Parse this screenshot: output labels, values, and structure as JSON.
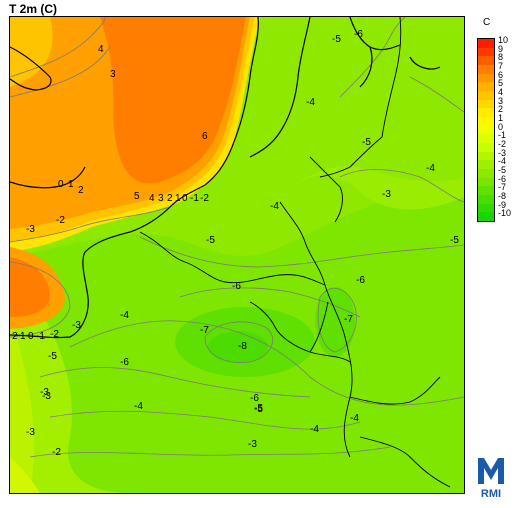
{
  "title": "T 2m (C)",
  "unit": "C",
  "legend": {
    "labels": [
      "10",
      "9",
      "8",
      "7",
      "6",
      "5",
      "4",
      "3",
      "2",
      "1",
      "0",
      "-1",
      "-2",
      "-3",
      "-4",
      "-5",
      "-6",
      "-7",
      "-8",
      "-9",
      "-10"
    ],
    "colors": [
      "#ff1e00",
      "#ff3a00",
      "#ff5c00",
      "#ff7e00",
      "#ff9800",
      "#ffb000",
      "#ffc400",
      "#ffd800",
      "#ffea00",
      "#fff600",
      "#f0ff00",
      "#dcff00",
      "#c8ff00",
      "#b4f500",
      "#a0ee00",
      "#8cea00",
      "#78e600",
      "#60e200",
      "#48de00",
      "#30da00",
      "#18d600"
    ]
  },
  "contour_labels": [
    "4",
    "3",
    "6",
    "5",
    "4",
    "3",
    "2",
    "1",
    "0",
    "-1",
    "-2",
    "0",
    "1",
    "2",
    "-2",
    "-3",
    "2",
    "1",
    "0",
    "-1",
    "-2",
    "-3",
    "-4",
    "-5",
    "-6",
    "-4",
    "-3",
    "-5",
    "-6",
    "-7",
    "-8",
    "-4",
    "-5",
    "-6",
    "-3",
    "-4",
    "-5",
    "-6",
    "-7",
    "-3",
    "-4",
    "-5",
    "-6",
    "-3",
    "-2",
    "-3",
    "-4",
    "-5",
    "-4",
    "-5"
  ],
  "logo": {
    "text": "RMI"
  }
}
